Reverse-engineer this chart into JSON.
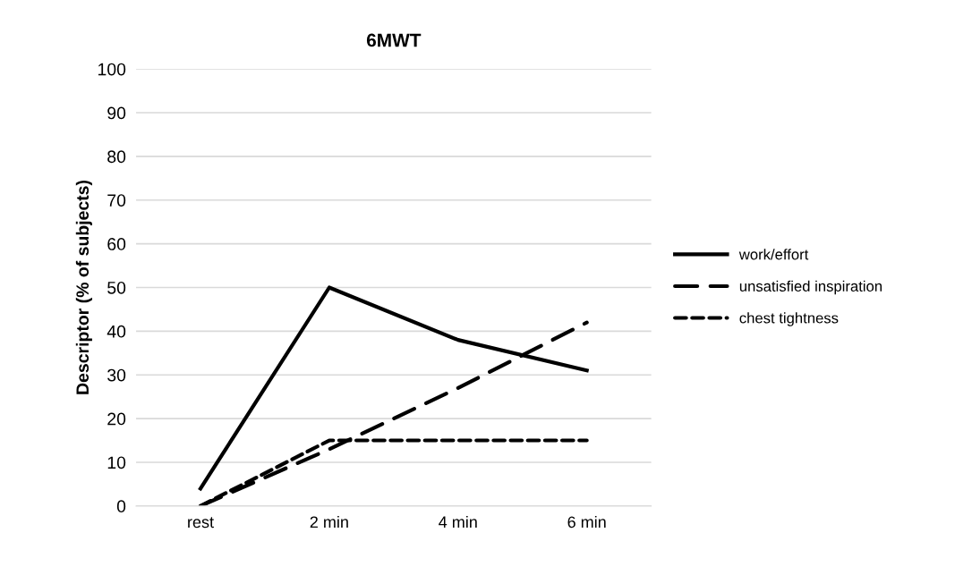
{
  "chart_data": {
    "type": "line",
    "title": "6MWT",
    "ylabel": "Descriptor (% of subjects)",
    "categories": [
      "rest",
      "2 min",
      "4 min",
      "6 min"
    ],
    "series": [
      {
        "name": "work/effort",
        "color": "#000000",
        "values": [
          4,
          50,
          38,
          31
        ],
        "line_style": "solid"
      },
      {
        "name": "unsatisfied inspiration",
        "color": "#000000",
        "values": [
          0,
          13,
          27,
          42
        ],
        "line_style": "dashed"
      },
      {
        "name": "chest tightness",
        "color": "#000000",
        "values": [
          0,
          15,
          15,
          15
        ],
        "line_style": "dotted"
      }
    ],
    "ylim": [
      0,
      100
    ],
    "yticks": [
      0,
      10,
      20,
      30,
      40,
      50,
      60,
      70,
      80,
      90,
      100
    ],
    "grid": "y",
    "legend": "right",
    "marker": "none"
  }
}
